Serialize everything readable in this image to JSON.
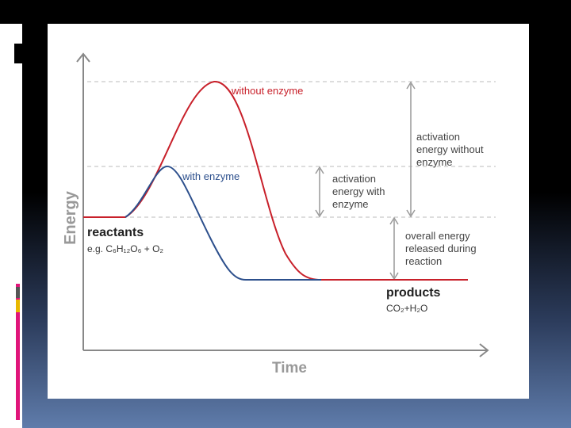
{
  "diagram": {
    "axes": {
      "y_label": "Energy",
      "x_label": "Time"
    },
    "curves": {
      "without_enzyme": "without enzyme",
      "with_enzyme": "with enzyme"
    },
    "annotations": {
      "activation_without": [
        "activation",
        "energy without",
        "enzyme"
      ],
      "activation_with": [
        "activation",
        "energy with",
        "enzyme"
      ],
      "overall": [
        "overall energy",
        "released during",
        "reaction"
      ]
    },
    "reactants": {
      "label": "reactants",
      "example": "e.g. C₆H₁₂O₆ + O₂"
    },
    "products": {
      "label": "products",
      "example": "CO₂+H₂O"
    }
  }
}
